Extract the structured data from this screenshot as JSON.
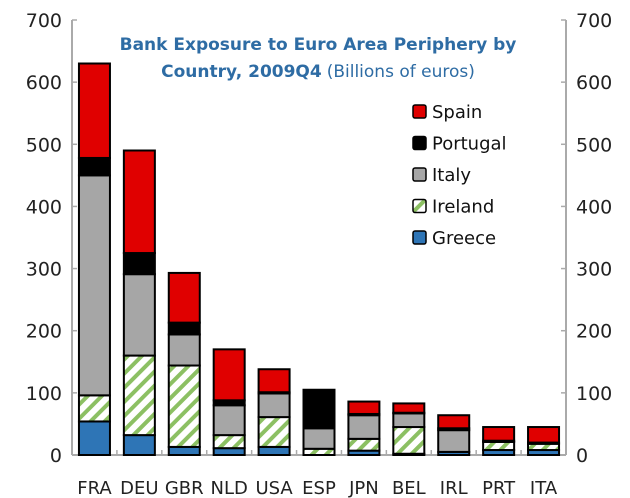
{
  "chart_data": {
    "type": "bar",
    "stacked": true,
    "title_line1": "Bank Exposure to Euro Area Periphery by",
    "title_line2": "Country, 2009Q4",
    "title_units": "(Billions of euros)",
    "xlabel": "",
    "ylabel": "",
    "ylim": [
      0,
      700
    ],
    "yticks": [
      0,
      100,
      200,
      300,
      400,
      500,
      600,
      700
    ],
    "grid": false,
    "legend_position": "top-right",
    "categories": [
      "FRA",
      "DEU",
      "GBR",
      "NLD",
      "USA",
      "ESP",
      "JPN",
      "BEL",
      "IRL",
      "PRT",
      "ITA"
    ],
    "series": [
      {
        "name": "Greece",
        "color": "#2e75b6",
        "pattern": "solid",
        "values": [
          54,
          32,
          13,
          11,
          13,
          0,
          7,
          2,
          5,
          8,
          8
        ]
      },
      {
        "name": "Ireland",
        "color": "#8cc063",
        "pattern": "hatched",
        "values": [
          42,
          128,
          131,
          21,
          48,
          10,
          19,
          43,
          0,
          13,
          10
        ]
      },
      {
        "name": "Italy",
        "color": "#a6a6a6",
        "pattern": "solid",
        "values": [
          354,
          131,
          50,
          48,
          38,
          33,
          38,
          22,
          35,
          2,
          0
        ]
      },
      {
        "name": "Portugal",
        "color": "#000000",
        "pattern": "solid",
        "values": [
          28,
          34,
          19,
          8,
          2,
          62,
          2,
          1,
          3,
          0,
          2
        ]
      },
      {
        "name": "Spain",
        "color": "#e00000",
        "pattern": "solid",
        "values": [
          152,
          165,
          80,
          82,
          37,
          0,
          20,
          15,
          21,
          22,
          25
        ]
      }
    ],
    "legend_order": [
      "Spain",
      "Portugal",
      "Italy",
      "Ireland",
      "Greece"
    ]
  }
}
